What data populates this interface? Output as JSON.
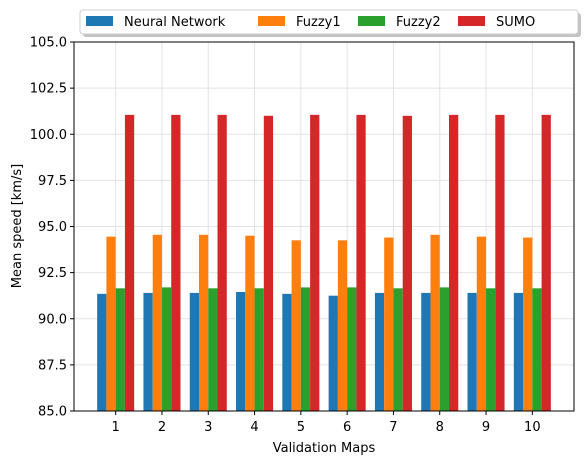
{
  "chart_data": {
    "type": "bar",
    "title": "",
    "xlabel": "Validation Maps",
    "ylabel": "Mean speed [km/s]",
    "categories": [
      "1",
      "2",
      "3",
      "4",
      "5",
      "6",
      "7",
      "8",
      "9",
      "10"
    ],
    "series": [
      {
        "name": "Neural Network",
        "color": "#1f77b4",
        "values": [
          91.35,
          91.4,
          91.4,
          91.45,
          91.35,
          91.25,
          91.4,
          91.4,
          91.4,
          91.4
        ]
      },
      {
        "name": "Fuzzy1",
        "color": "#ff7f0e",
        "values": [
          94.45,
          94.55,
          94.55,
          94.5,
          94.25,
          94.25,
          94.4,
          94.55,
          94.45,
          94.4
        ]
      },
      {
        "name": "Fuzzy2",
        "color": "#2ca02c",
        "values": [
          91.65,
          91.7,
          91.65,
          91.65,
          91.7,
          91.7,
          91.65,
          91.7,
          91.65,
          91.65
        ]
      },
      {
        "name": "SUMO",
        "color": "#d62728",
        "values": [
          101.05,
          101.05,
          101.05,
          101.0,
          101.05,
          101.05,
          101.0,
          101.05,
          101.05,
          101.05
        ]
      }
    ],
    "ylim": [
      85.0,
      105.0
    ],
    "yticks": [
      "85.0",
      "87.5",
      "90.0",
      "92.5",
      "95.0",
      "97.5",
      "100.0",
      "102.5",
      "105.0"
    ],
    "grid": true,
    "legend": "top-center"
  }
}
